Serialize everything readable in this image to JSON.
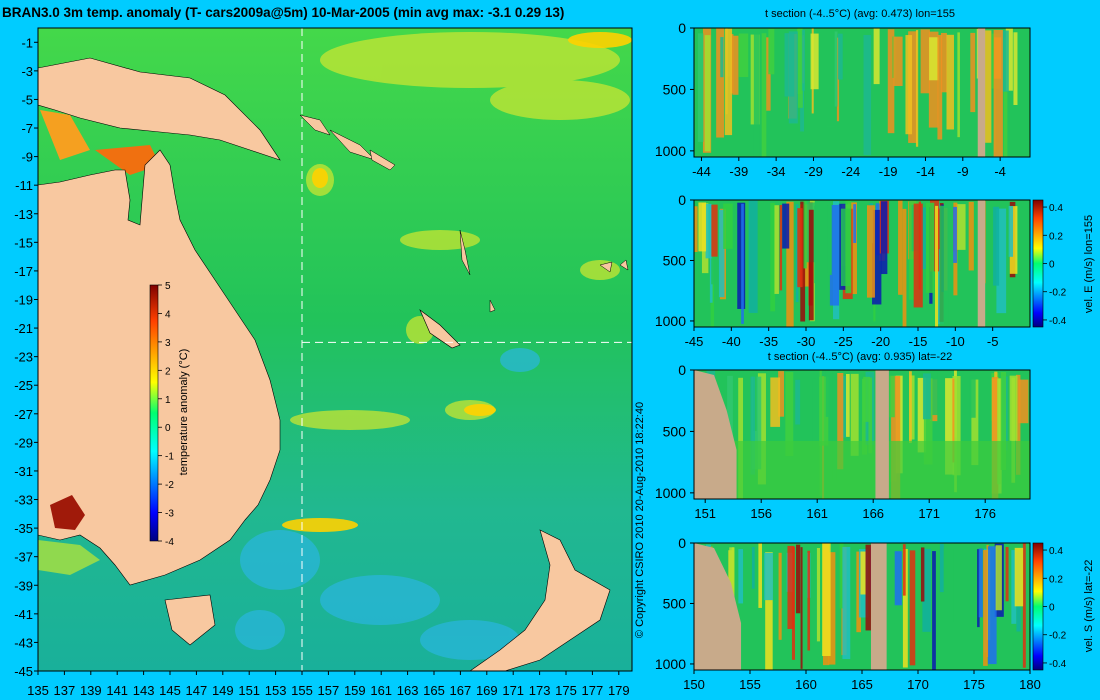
{
  "colors": {
    "background": "#00ccff",
    "land": "#f8c8a0",
    "section_land": "#c8aa8a",
    "ocean_base": "#22c35a",
    "guide_line": "#ffffff"
  },
  "chart_data": [
    {
      "type": "heatmap",
      "id": "main_map",
      "title": "BRAN3.0 3m temp. anomaly (T- cars2009a@5m) 10-Mar-2005 (min avg max: -3.1 0.29 13)",
      "x_ticks": [
        "135",
        "137",
        "139",
        "141",
        "143",
        "145",
        "147",
        "149",
        "151",
        "153",
        "155",
        "157",
        "159",
        "161",
        "163",
        "165",
        "167",
        "169",
        "171",
        "173",
        "175",
        "177",
        "179"
      ],
      "y_ticks": [
        "-1",
        "-3",
        "-5",
        "-7",
        "-9",
        "-11",
        "-13",
        "-15",
        "-17",
        "-19",
        "-21",
        "-23",
        "-25",
        "-27",
        "-29",
        "-31",
        "-33",
        "-35",
        "-37",
        "-39",
        "-41",
        "-43",
        "-45"
      ],
      "xlim": [
        135,
        180
      ],
      "ylim": [
        -45,
        0
      ],
      "guide_lon": 155,
      "guide_lat": -22,
      "colorbar": {
        "label": "temperature anomaly (°C)",
        "ticks": [
          "5",
          "4",
          "3",
          "2",
          "1",
          "0",
          "-1",
          "-2",
          "-3",
          "-4"
        ],
        "range": [
          -4,
          5
        ]
      }
    },
    {
      "type": "heatmap",
      "id": "t_section_lon",
      "title": "t section (-4..5°C) (avg: 0.473) lon=155",
      "x_ticks": [
        "-44",
        "-39",
        "-34",
        "-29",
        "-24",
        "-19",
        "-14",
        "-9",
        "-4"
      ],
      "y_ticks": [
        "0",
        "500",
        "1000"
      ],
      "xlim": [
        -45,
        0
      ],
      "ylim": [
        0,
        1050
      ],
      "land_bands": [
        [
          -7.0,
          -6.0
        ]
      ]
    },
    {
      "type": "heatmap",
      "id": "vel_e_section",
      "title": "",
      "x_ticks": [
        "-45",
        "-40",
        "-35",
        "-30",
        "-25",
        "-20",
        "-15",
        "-10",
        "-5"
      ],
      "y_ticks": [
        "0",
        "500",
        "1000"
      ],
      "xlim": [
        -45,
        0
      ],
      "ylim": [
        0,
        1050
      ],
      "land_bands": [
        [
          -7.0,
          -6.0
        ]
      ],
      "colorbar": {
        "label": "vel. E (m/s) lon=155",
        "ticks": [
          "0.4",
          "0.2",
          "0",
          "-0.2",
          "-0.4"
        ],
        "range": [
          -0.45,
          0.45
        ]
      }
    },
    {
      "type": "heatmap",
      "id": "t_section_lat",
      "title": "t section (-4..5°C) (avg: 0.935) lat=-22",
      "x_ticks": [
        "151",
        "156",
        "161",
        "166",
        "171",
        "176"
      ],
      "y_ticks": [
        "0",
        "500",
        "1000"
      ],
      "xlim": [
        150,
        180
      ],
      "ylim": [
        0,
        1050
      ],
      "land_bands": [
        [
          166.2,
          167.4
        ]
      ]
    },
    {
      "type": "heatmap",
      "id": "vel_s_section",
      "title": "",
      "x_ticks": [
        "150",
        "155",
        "160",
        "165",
        "170",
        "175",
        "180"
      ],
      "y_ticks": [
        "0",
        "500",
        "1000"
      ],
      "xlim": [
        150,
        180
      ],
      "ylim": [
        0,
        1050
      ],
      "land_bands": [
        [
          165.8,
          167.2
        ]
      ],
      "colorbar": {
        "label": "vel. S (m/s) lat=-22",
        "ticks": [
          "0.4",
          "0.2",
          "0",
          "-0.2",
          "-0.4"
        ],
        "range": [
          -0.45,
          0.45
        ]
      }
    }
  ],
  "copyright": "© Copyright CSIRO 2010  20-Aug-2010 18:22:40"
}
